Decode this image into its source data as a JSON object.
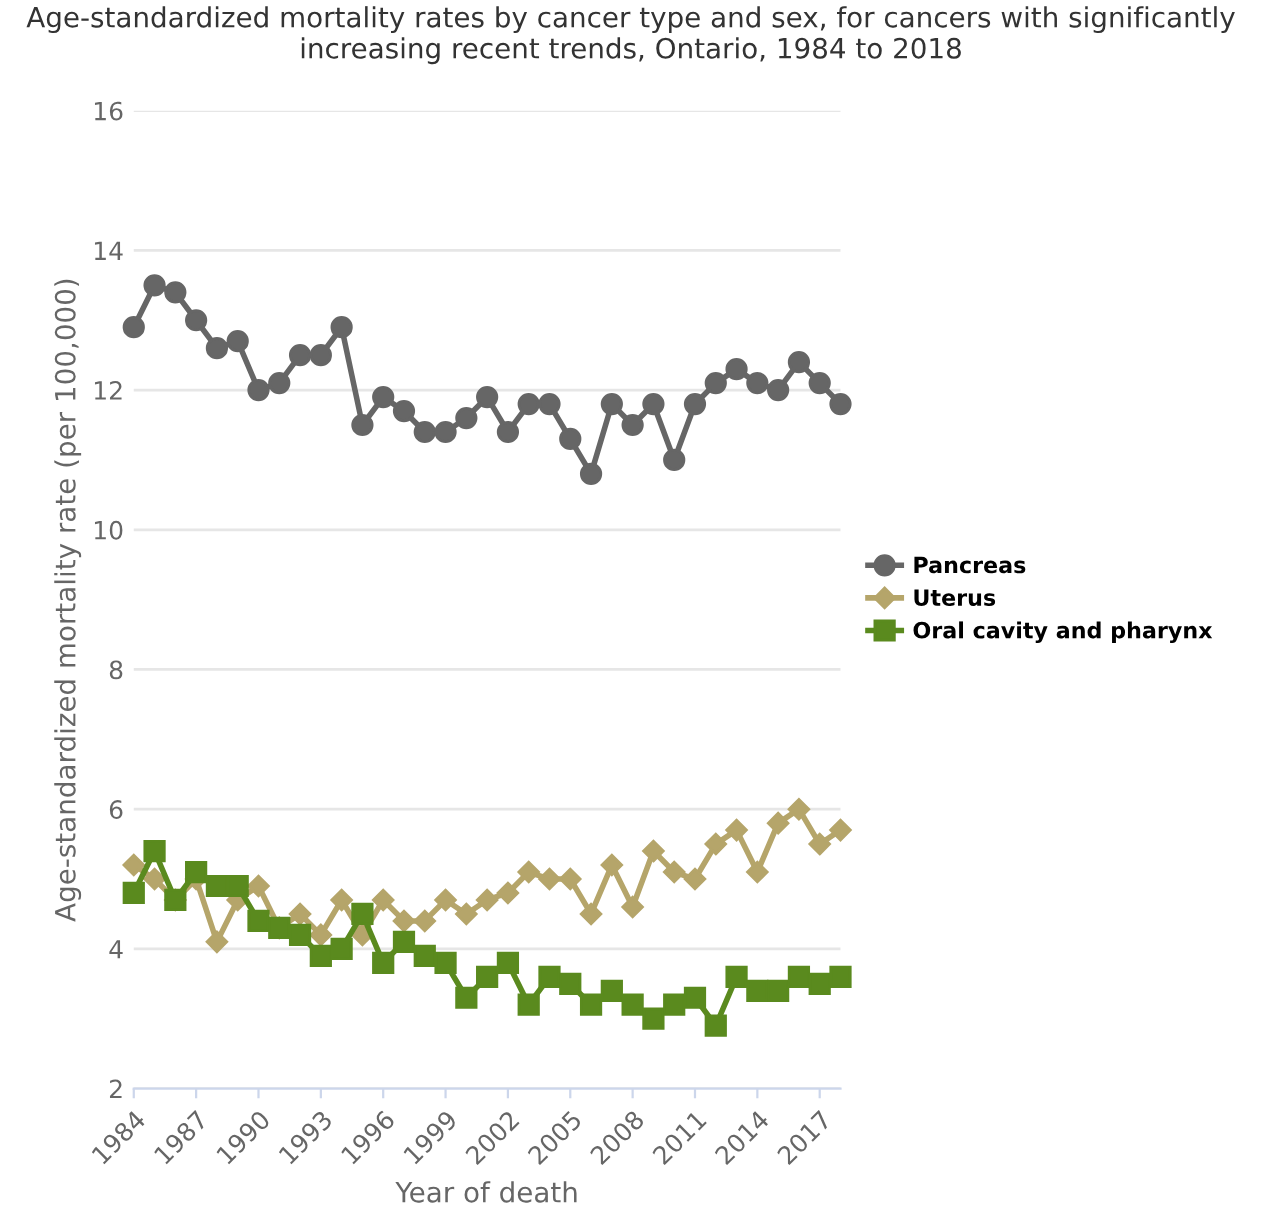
{
  "chart_data": {
    "type": "line",
    "title": "Age-standardized mortality rates by cancer type and sex, for cancers with significantly\nincreasing recent trends, Ontario, 1984 to 2018",
    "xlabel": "Year of death",
    "ylabel": "Age-standardized mortality rate (per 100,000)",
    "x": [
      1984,
      1985,
      1986,
      1987,
      1988,
      1989,
      1990,
      1991,
      1992,
      1993,
      1994,
      1995,
      1996,
      1997,
      1998,
      1999,
      2000,
      2001,
      2002,
      2003,
      2004,
      2005,
      2006,
      2007,
      2008,
      2009,
      2010,
      2011,
      2012,
      2013,
      2014,
      2015,
      2016,
      2017,
      2018
    ],
    "series": [
      {
        "name": "Pancreas",
        "color": "#666666",
        "marker": "circle",
        "values": [
          12.9,
          13.5,
          13.4,
          13.0,
          12.6,
          12.7,
          12.0,
          12.1,
          12.5,
          12.5,
          12.9,
          11.5,
          11.9,
          11.7,
          11.4,
          11.4,
          11.6,
          11.9,
          11.4,
          11.8,
          11.8,
          11.3,
          10.8,
          11.8,
          11.5,
          11.8,
          11.0,
          11.8,
          12.1,
          12.3,
          12.1,
          12.0,
          12.4,
          12.1,
          11.8
        ]
      },
      {
        "name": "Uterus",
        "color": "#b5a56a",
        "marker": "diamond",
        "values": [
          5.2,
          5.0,
          4.7,
          5.0,
          4.1,
          4.7,
          4.9,
          4.3,
          4.5,
          4.2,
          4.7,
          4.2,
          4.7,
          4.4,
          4.4,
          4.7,
          4.5,
          4.7,
          4.8,
          5.1,
          5.0,
          5.0,
          4.5,
          5.2,
          4.6,
          5.4,
          5.1,
          5.0,
          5.5,
          5.7,
          5.1,
          5.8,
          6.0,
          5.5,
          5.7
        ]
      },
      {
        "name": "Oral cavity and pharynx",
        "color": "#5a8a1e",
        "marker": "square",
        "values": [
          4.8,
          5.4,
          4.7,
          5.1,
          4.9,
          4.9,
          4.4,
          4.3,
          4.2,
          3.9,
          4.0,
          4.5,
          3.8,
          4.1,
          3.9,
          3.8,
          3.3,
          3.6,
          3.8,
          3.2,
          3.6,
          3.5,
          3.2,
          3.4,
          3.2,
          3.0,
          3.2,
          3.3,
          2.9,
          3.6,
          3.4,
          3.4,
          3.6,
          3.5,
          3.6
        ]
      }
    ],
    "xlim": [
      1984,
      2018
    ],
    "xticks": [
      1984,
      1987,
      1990,
      1993,
      1996,
      1999,
      2002,
      2005,
      2008,
      2011,
      2014,
      2017
    ],
    "ylim": [
      2,
      16
    ],
    "yticks": [
      2,
      4,
      6,
      8,
      10,
      12,
      14,
      16
    ],
    "grid": "y",
    "legend": "right",
    "line_style": "solid"
  }
}
